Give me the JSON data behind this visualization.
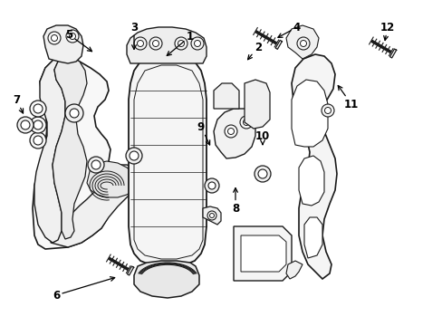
{
  "bg_color": "#ffffff",
  "line_color": "#1a1a1a",
  "figsize": [
    4.89,
    3.6
  ],
  "dpi": 100,
  "labels": {
    "1": [
      0.435,
      0.875,
      0.41,
      0.84
    ],
    "2": [
      0.54,
      0.79,
      0.51,
      0.79
    ],
    "3": [
      0.29,
      0.825,
      0.295,
      0.78
    ],
    "4": [
      0.66,
      0.93,
      0.628,
      0.91
    ],
    "5": [
      0.158,
      0.84,
      0.178,
      0.8
    ],
    "6": [
      0.1,
      0.108,
      0.15,
      0.135
    ],
    "7": [
      0.04,
      0.45,
      0.065,
      0.47
    ],
    "8": [
      0.348,
      0.195,
      0.348,
      0.23
    ],
    "9": [
      0.43,
      0.59,
      0.435,
      0.565
    ],
    "10": [
      0.5,
      0.635,
      0.49,
      0.595
    ],
    "11": [
      0.57,
      0.42,
      0.545,
      0.46
    ],
    "12": [
      0.76,
      0.89,
      0.755,
      0.855
    ]
  }
}
